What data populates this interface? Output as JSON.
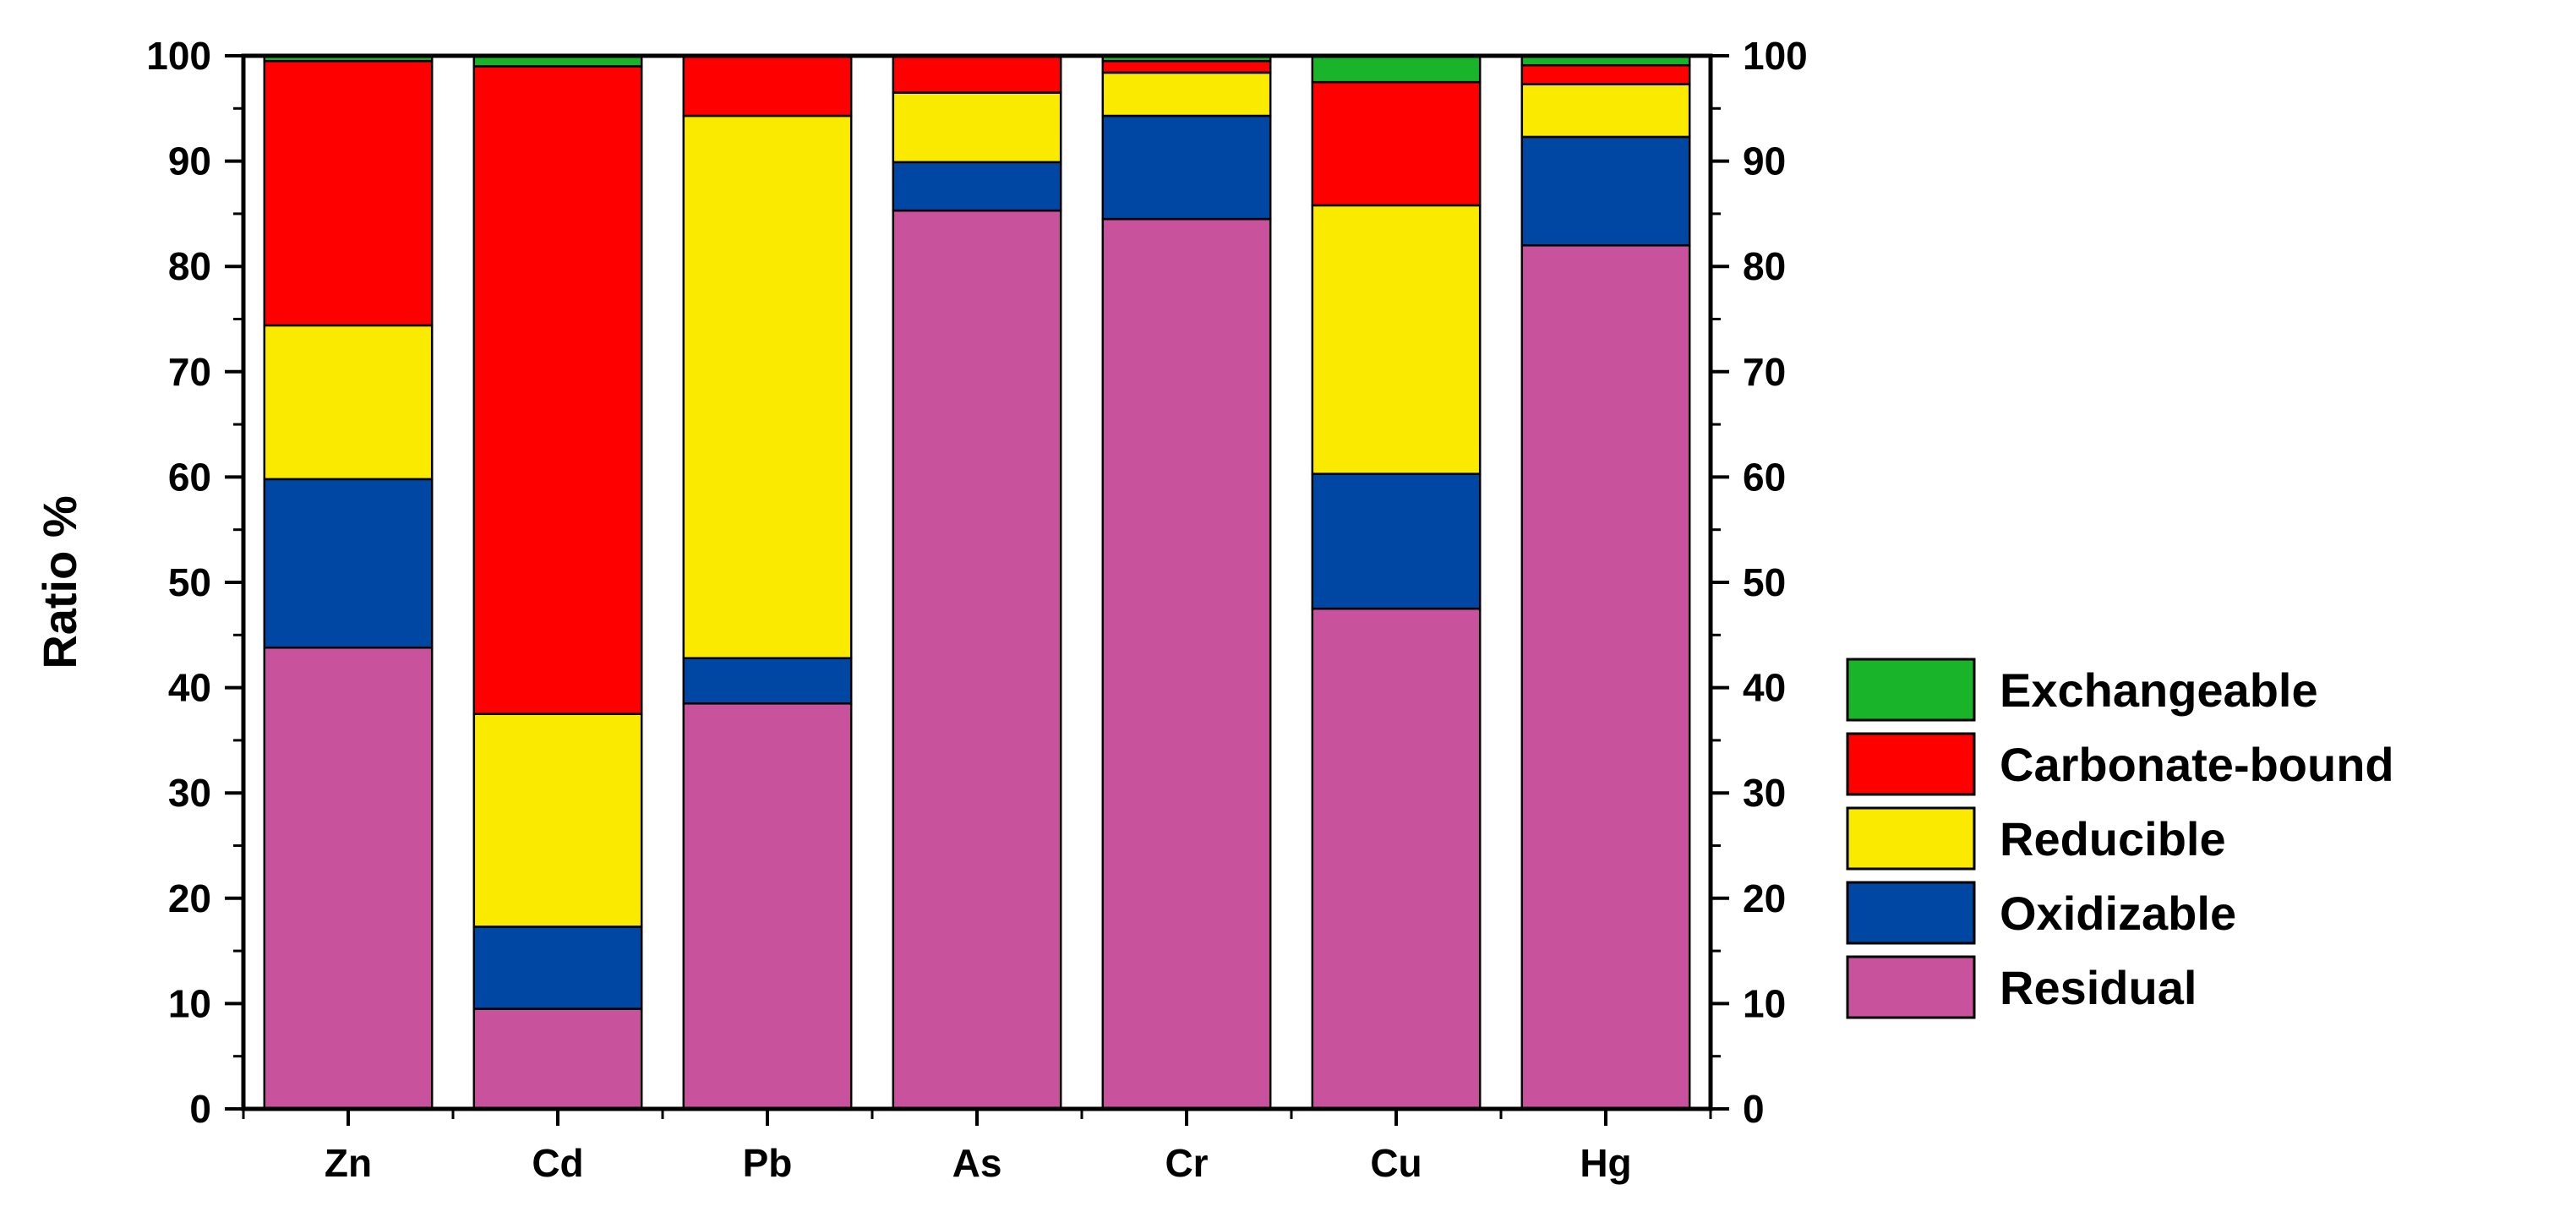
{
  "chart_data": {
    "type": "bar",
    "stacked": true,
    "title": "",
    "xlabel": "",
    "ylabel": "Ratio %",
    "ylim": [
      0,
      100
    ],
    "yticks": [
      "0",
      "10",
      "20",
      "30",
      "40",
      "50",
      "60",
      "70",
      "80",
      "90",
      "100"
    ],
    "categories": [
      "Zn",
      "Cd",
      "Pb",
      "As",
      "Cr",
      "Cu",
      "Hg"
    ],
    "legend_position": "right",
    "series": [
      {
        "name": "Residual",
        "color": "#c9529d",
        "values": [
          43.8,
          9.5,
          38.5,
          85.3,
          84.5,
          47.5,
          82.0
        ]
      },
      {
        "name": "Oxidizable",
        "color": "#0047a3",
        "values": [
          16.0,
          7.8,
          4.3,
          4.6,
          9.8,
          12.8,
          10.3
        ]
      },
      {
        "name": "Reducible",
        "color": "#f9ea00",
        "values": [
          14.6,
          20.2,
          51.5,
          6.6,
          4.1,
          25.5,
          5.0
        ]
      },
      {
        "name": "Carbonate-bound",
        "color": "#ff0000",
        "values": [
          25.1,
          61.5,
          5.7,
          3.5,
          1.1,
          11.7,
          1.8
        ]
      },
      {
        "name": "Exchangeable",
        "color": "#19b42a",
        "values": [
          0.5,
          1.0,
          0.0,
          0.0,
          0.5,
          2.5,
          0.9
        ]
      }
    ],
    "legend_order": [
      "Exchangeable",
      "Carbonate-bound",
      "Reducible",
      "Oxidizable",
      "Residual"
    ]
  }
}
